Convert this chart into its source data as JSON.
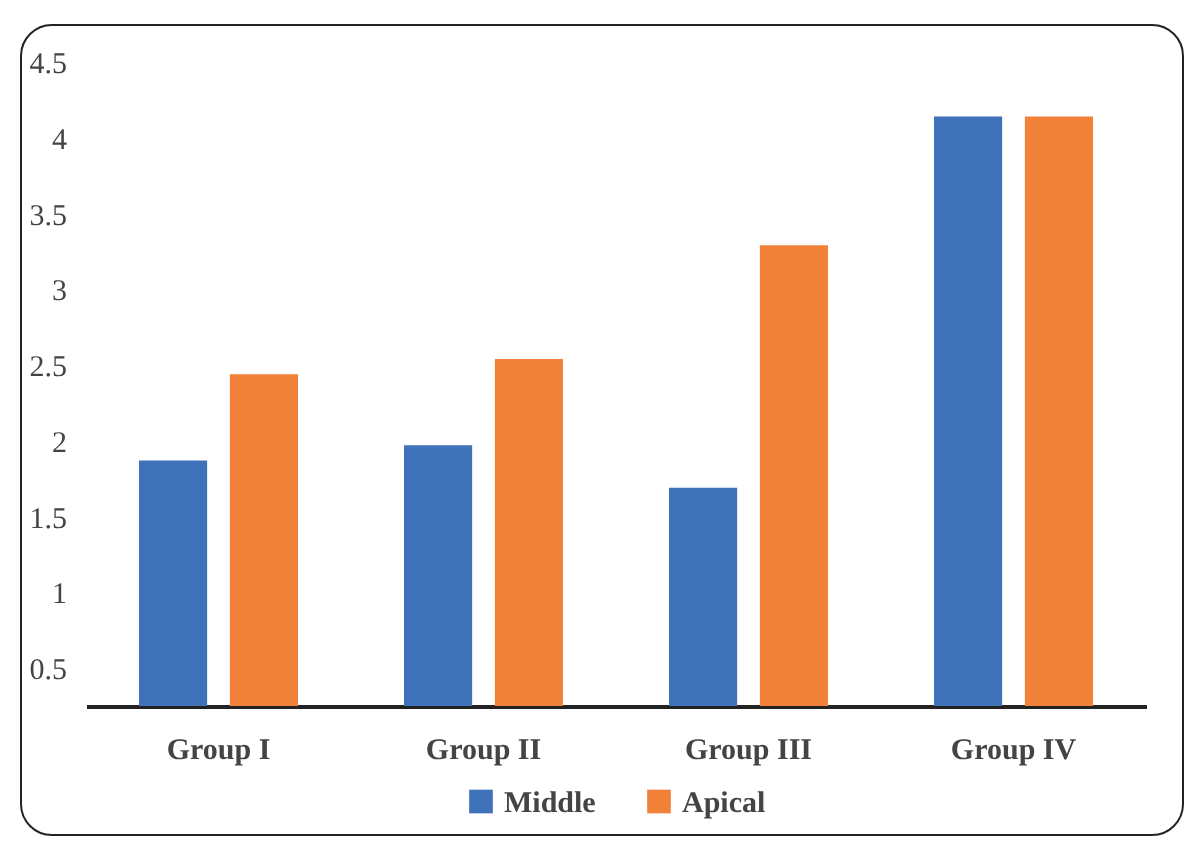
{
  "chart_data": {
    "type": "bar",
    "categories": [
      "Group I",
      "Group II",
      "Group III",
      "Group IV"
    ],
    "series": [
      {
        "name": "Middle",
        "color": "#3f72b8",
        "values": [
          1.87,
          1.97,
          1.69,
          4.14
        ]
      },
      {
        "name": "Apical",
        "color": "#f2823a",
        "values": [
          2.44,
          2.54,
          3.29,
          4.14
        ]
      }
    ],
    "ylim": [
      0.25,
      4.5
    ],
    "yticks": [
      0.5,
      1,
      1.5,
      2,
      2.5,
      3,
      3.5,
      4,
      4.5
    ],
    "grid": false,
    "legend": "bottom"
  }
}
